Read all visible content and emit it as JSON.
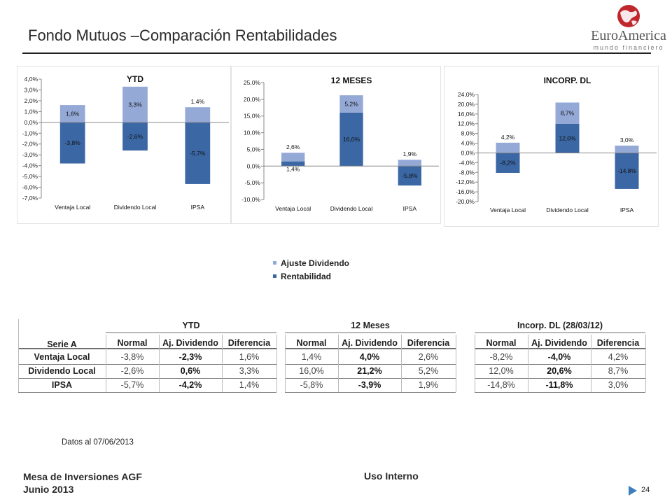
{
  "header": {
    "title": "Fondo Mutuos –Comparación Rentabilidades",
    "logo_word": "EuroAmerica",
    "logo_sub": "mundo financiero"
  },
  "colors": {
    "ajuste": "#94a9d6",
    "rentabilidad": "#3b67a4",
    "logo_red": "#c0272d"
  },
  "legend": [
    {
      "label": "Ajuste Dividendo",
      "color": "#94a9d6"
    },
    {
      "label": "Rentabilidad",
      "color": "#3b67a4"
    }
  ],
  "chart_data": [
    {
      "type": "bar",
      "title": "YTD",
      "categories": [
        "Ventaja Local",
        "Dividendo Local",
        "IPSA"
      ],
      "ylim": [
        -7,
        4
      ],
      "yticks": [
        4,
        3,
        2,
        1,
        0,
        -1,
        -2,
        -3,
        -4,
        -5,
        -6,
        -7
      ],
      "ytick_labels": [
        "4,0%",
        "3,0%",
        "2,0%",
        "1,0%",
        "0,0%",
        "-1,0%",
        "-2,0%",
        "-3,0%",
        "-4,0%",
        "-5,0%",
        "-6,0%",
        "-7,0%"
      ],
      "series": [
        {
          "name": "Rentabilidad",
          "values": [
            -3.8,
            -2.6,
            -5.7
          ],
          "labels": [
            "-3,8%",
            "-2,6%",
            "-5,7%"
          ]
        },
        {
          "name": "Ajuste Dividendo",
          "values": [
            1.6,
            3.3,
            1.4
          ],
          "labels": [
            "1,6%",
            "3,3%",
            "1,4%"
          ]
        }
      ]
    },
    {
      "type": "bar",
      "title": "12 MESES",
      "categories": [
        "Ventaja Local",
        "Dividendo Local",
        "IPSA"
      ],
      "ylim": [
        -10,
        25
      ],
      "yticks": [
        25,
        20,
        15,
        10,
        5,
        0,
        -5,
        -10
      ],
      "ytick_labels": [
        "25,0%",
        "20,0%",
        "15,0%",
        "10,0%",
        "5,0%",
        "0,0%",
        "-5,0%",
        "-10,0%"
      ],
      "series": [
        {
          "name": "Rentabilidad",
          "values": [
            1.4,
            16.0,
            -5.8
          ],
          "labels": [
            "1,4%",
            "16,0%",
            "-5,8%"
          ]
        },
        {
          "name": "Ajuste Dividendo",
          "values": [
            2.6,
            5.2,
            1.9
          ],
          "labels": [
            "2,6%",
            "5,2%",
            "1,9%"
          ]
        }
      ]
    },
    {
      "type": "bar",
      "title": "INCORP. DL",
      "categories": [
        "Ventaja Local",
        "Dividendo Local",
        "IPSA"
      ],
      "ylim": [
        -20,
        24
      ],
      "yticks": [
        24,
        20,
        16,
        12,
        8,
        4,
        0,
        -4,
        -8,
        -12,
        -16,
        -20
      ],
      "ytick_labels": [
        "24,0%",
        "20,0%",
        "16,0%",
        "12,0%",
        "8,0%",
        "4,0%",
        "0,0%",
        "-4,0%",
        "-8,0%",
        "-12,0%",
        "-16,0%",
        "-20,0%"
      ],
      "series": [
        {
          "name": "Rentabilidad",
          "values": [
            -8.2,
            12.0,
            -14.8
          ],
          "labels": [
            "-8,2%",
            "12,0%",
            "-14,8%"
          ]
        },
        {
          "name": "Ajuste Dividendo",
          "values": [
            4.2,
            8.7,
            3.0
          ],
          "labels": [
            "4,2%",
            "8,7%",
            "3,0%"
          ]
        }
      ]
    }
  ],
  "table": {
    "serie_label": "Serie A",
    "groups": [
      "YTD",
      "12 Meses",
      "Incorp. DL (28/03/12)"
    ],
    "subheaders": [
      "Normal",
      "Aj. Dividendo",
      "Diferencia"
    ],
    "rows": [
      {
        "name": "Ventaja Local",
        "values": [
          [
            "-3,8%",
            "-2,3%",
            "1,6%"
          ],
          [
            "1,4%",
            "4,0%",
            "2,6%"
          ],
          [
            "-8,2%",
            "-4,0%",
            "4,2%"
          ]
        ]
      },
      {
        "name": "Dividendo Local",
        "values": [
          [
            "-2,6%",
            "0,6%",
            "3,3%"
          ],
          [
            "16,0%",
            "21,2%",
            "5,2%"
          ],
          [
            "12,0%",
            "20,6%",
            "8,7%"
          ]
        ]
      },
      {
        "name": "IPSA",
        "values": [
          [
            "-5,7%",
            "-4,2%",
            "1,4%"
          ],
          [
            "-5,8%",
            "-3,9%",
            "1,9%"
          ],
          [
            "-14,8%",
            "-11,8%",
            "3,0%"
          ]
        ]
      }
    ]
  },
  "footnote": "Datos al 07/06/2013",
  "footer": {
    "left_line1": "Mesa de Inversiones AGF",
    "left_line2": "Junio 2013",
    "middle": "Uso Interno",
    "page": "24"
  }
}
